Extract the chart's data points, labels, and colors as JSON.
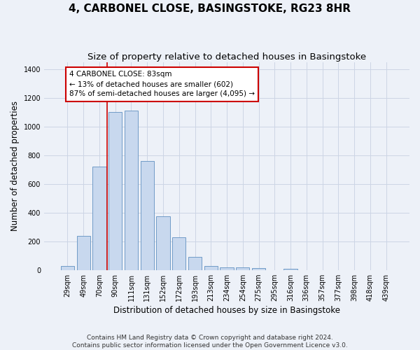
{
  "title": "4, CARBONEL CLOSE, BASINGSTOKE, RG23 8HR",
  "subtitle": "Size of property relative to detached houses in Basingstoke",
  "xlabel": "Distribution of detached houses by size in Basingstoke",
  "ylabel": "Number of detached properties",
  "footnote1": "Contains HM Land Registry data © Crown copyright and database right 2024.",
  "footnote2": "Contains public sector information licensed under the Open Government Licence v3.0.",
  "categories": [
    "29sqm",
    "49sqm",
    "70sqm",
    "90sqm",
    "111sqm",
    "131sqm",
    "152sqm",
    "172sqm",
    "193sqm",
    "213sqm",
    "234sqm",
    "254sqm",
    "275sqm",
    "295sqm",
    "316sqm",
    "336sqm",
    "357sqm",
    "377sqm",
    "398sqm",
    "418sqm",
    "439sqm"
  ],
  "values": [
    30,
    240,
    720,
    1105,
    1115,
    760,
    375,
    228,
    90,
    30,
    20,
    17,
    12,
    0,
    10,
    0,
    0,
    0,
    0,
    0,
    0
  ],
  "bar_color": "#c8d8ee",
  "bar_edge_color": "#6090c0",
  "grid_color": "#ccd5e5",
  "background_color": "#edf1f8",
  "annotation_text": "4 CARBONEL CLOSE: 83sqm\n← 13% of detached houses are smaller (602)\n87% of semi-detached houses are larger (4,095) →",
  "vline_x": 2.5,
  "vline_color": "#cc0000",
  "annotation_box_facecolor": "#ffffff",
  "annotation_border_color": "#cc0000",
  "ylim": [
    0,
    1450
  ],
  "title_fontsize": 11,
  "subtitle_fontsize": 9.5,
  "axis_label_fontsize": 8.5,
  "tick_fontsize": 7,
  "footnote_fontsize": 6.5
}
